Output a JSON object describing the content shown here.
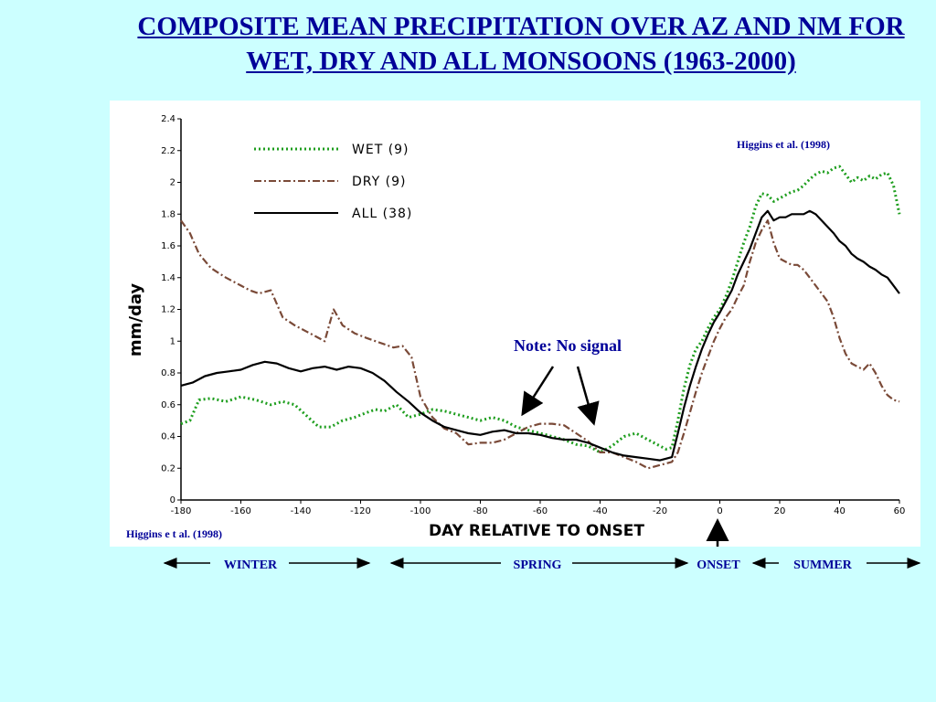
{
  "slide": {
    "title": "COMPOSITE MEAN PRECIPITATION OVER AZ AND NM FOR WET, DRY AND ALL MONSOONS (1963-2000)"
  },
  "annotations": {
    "citation_top": "Higgins et al. (1998)",
    "citation_bottom": "Higgins e t al. (1998)",
    "note": "Note: No signal"
  },
  "seasons": {
    "winter": "WINTER",
    "spring": "SPRING",
    "onset": "ONSET",
    "summer": "SUMMER"
  },
  "colors": {
    "wet": "#1e9e1e",
    "dry": "#7a4a38",
    "all": "#000000",
    "accent": "#000099",
    "background": "#ccffff"
  },
  "chart_data": {
    "type": "line",
    "xlabel": "DAY RELATIVE TO ONSET",
    "ylabel": "mm/day",
    "xlim": [
      -180,
      60
    ],
    "ylim": [
      0,
      2.4
    ],
    "xticks": [
      "-180",
      "-160",
      "-140",
      "-120",
      "-100",
      "-80",
      "-60",
      "-40",
      "-20",
      "0",
      "20",
      "40",
      "60"
    ],
    "yticks": [
      "0",
      "0.2",
      "0.4",
      "0.6",
      "0.8",
      "1",
      "1.2",
      "1.4",
      "1.6",
      "1.8",
      "2",
      "2.2",
      "2.4"
    ],
    "legend_position": "top-left",
    "series": [
      {
        "name": "WET (9)",
        "style": "dotted",
        "x": [
          -180,
          -177,
          -174,
          -170,
          -165,
          -160,
          -155,
          -150,
          -146,
          -142,
          -138,
          -134,
          -130,
          -126,
          -122,
          -118,
          -115,
          -112,
          -108,
          -104,
          -100,
          -96,
          -92,
          -88,
          -84,
          -80,
          -76,
          -72,
          -68,
          -64,
          -60,
          -56,
          -52,
          -48,
          -44,
          -40,
          -36,
          -32,
          -28,
          -24,
          -20,
          -18,
          -16,
          -14,
          -12,
          -10,
          -8,
          -6,
          -4,
          -2,
          0,
          2,
          4,
          6,
          8,
          10,
          12,
          14,
          16,
          18,
          20,
          22,
          24,
          26,
          28,
          30,
          32,
          34,
          36,
          38,
          40,
          42,
          44,
          46,
          48,
          50,
          52,
          54,
          56,
          58,
          60
        ],
        "y": [
          0.48,
          0.5,
          0.63,
          0.64,
          0.62,
          0.65,
          0.63,
          0.6,
          0.62,
          0.6,
          0.53,
          0.46,
          0.46,
          0.5,
          0.52,
          0.55,
          0.57,
          0.56,
          0.6,
          0.52,
          0.54,
          0.57,
          0.56,
          0.54,
          0.52,
          0.5,
          0.52,
          0.5,
          0.46,
          0.44,
          0.42,
          0.4,
          0.38,
          0.35,
          0.34,
          0.3,
          0.34,
          0.4,
          0.42,
          0.38,
          0.34,
          0.32,
          0.33,
          0.5,
          0.7,
          0.85,
          0.95,
          1.0,
          1.08,
          1.15,
          1.2,
          1.28,
          1.38,
          1.5,
          1.62,
          1.72,
          1.85,
          1.93,
          1.92,
          1.88,
          1.9,
          1.92,
          1.94,
          1.95,
          1.98,
          2.02,
          2.05,
          2.07,
          2.06,
          2.09,
          2.1,
          2.05,
          2.0,
          2.03,
          2.01,
          2.04,
          2.02,
          2.05,
          2.06,
          1.98,
          1.8
        ]
      },
      {
        "name": "DRY (9)",
        "style": "dash-dot",
        "x": [
          -180,
          -177,
          -174,
          -170,
          -165,
          -160,
          -157,
          -154,
          -150,
          -146,
          -142,
          -138,
          -135,
          -132,
          -129,
          -126,
          -122,
          -118,
          -115,
          -112,
          -109,
          -106,
          -103,
          -100,
          -96,
          -92,
          -88,
          -84,
          -80,
          -76,
          -72,
          -68,
          -64,
          -60,
          -56,
          -52,
          -48,
          -44,
          -40,
          -36,
          -32,
          -28,
          -24,
          -20,
          -16,
          -14,
          -12,
          -10,
          -8,
          -6,
          -4,
          -2,
          0,
          2,
          4,
          6,
          8,
          10,
          12,
          14,
          16,
          18,
          20,
          22,
          24,
          26,
          28,
          30,
          32,
          34,
          36,
          38,
          40,
          42,
          44,
          46,
          48,
          50,
          52,
          54,
          56,
          58,
          60
        ],
        "y": [
          1.76,
          1.68,
          1.55,
          1.46,
          1.4,
          1.35,
          1.32,
          1.3,
          1.32,
          1.15,
          1.1,
          1.06,
          1.03,
          1.0,
          1.2,
          1.1,
          1.05,
          1.02,
          1.0,
          0.98,
          0.96,
          0.97,
          0.9,
          0.65,
          0.52,
          0.45,
          0.42,
          0.35,
          0.36,
          0.36,
          0.38,
          0.42,
          0.46,
          0.48,
          0.48,
          0.47,
          0.42,
          0.37,
          0.3,
          0.3,
          0.27,
          0.24,
          0.2,
          0.22,
          0.24,
          0.3,
          0.42,
          0.55,
          0.68,
          0.8,
          0.9,
          1.0,
          1.08,
          1.15,
          1.2,
          1.28,
          1.35,
          1.5,
          1.62,
          1.7,
          1.76,
          1.62,
          1.52,
          1.5,
          1.48,
          1.48,
          1.45,
          1.4,
          1.35,
          1.3,
          1.25,
          1.15,
          1.02,
          0.92,
          0.86,
          0.84,
          0.82,
          0.86,
          0.8,
          0.72,
          0.66,
          0.63,
          0.62
        ]
      },
      {
        "name": "ALL (38)",
        "style": "solid",
        "x": [
          -180,
          -176,
          -172,
          -168,
          -164,
          -160,
          -156,
          -152,
          -148,
          -144,
          -140,
          -136,
          -132,
          -128,
          -124,
          -120,
          -116,
          -112,
          -108,
          -104,
          -100,
          -96,
          -92,
          -88,
          -84,
          -80,
          -76,
          -72,
          -68,
          -64,
          -60,
          -56,
          -52,
          -48,
          -44,
          -40,
          -36,
          -32,
          -28,
          -24,
          -20,
          -18,
          -16,
          -14,
          -12,
          -10,
          -8,
          -6,
          -4,
          -2,
          0,
          2,
          4,
          6,
          8,
          10,
          12,
          14,
          16,
          18,
          20,
          22,
          24,
          26,
          28,
          30,
          32,
          34,
          36,
          38,
          40,
          42,
          44,
          46,
          48,
          50,
          52,
          54,
          56,
          58,
          60
        ],
        "y": [
          0.72,
          0.74,
          0.78,
          0.8,
          0.81,
          0.82,
          0.85,
          0.87,
          0.86,
          0.83,
          0.81,
          0.83,
          0.84,
          0.82,
          0.84,
          0.83,
          0.8,
          0.75,
          0.68,
          0.62,
          0.55,
          0.5,
          0.46,
          0.44,
          0.42,
          0.41,
          0.43,
          0.44,
          0.42,
          0.42,
          0.41,
          0.39,
          0.38,
          0.38,
          0.36,
          0.33,
          0.3,
          0.28,
          0.27,
          0.26,
          0.25,
          0.26,
          0.27,
          0.42,
          0.58,
          0.72,
          0.84,
          0.95,
          1.04,
          1.12,
          1.18,
          1.25,
          1.32,
          1.42,
          1.5,
          1.58,
          1.68,
          1.78,
          1.82,
          1.76,
          1.78,
          1.78,
          1.8,
          1.8,
          1.8,
          1.82,
          1.8,
          1.76,
          1.72,
          1.68,
          1.63,
          1.6,
          1.55,
          1.52,
          1.5,
          1.47,
          1.45,
          1.42,
          1.4,
          1.35,
          1.3
        ]
      }
    ]
  }
}
